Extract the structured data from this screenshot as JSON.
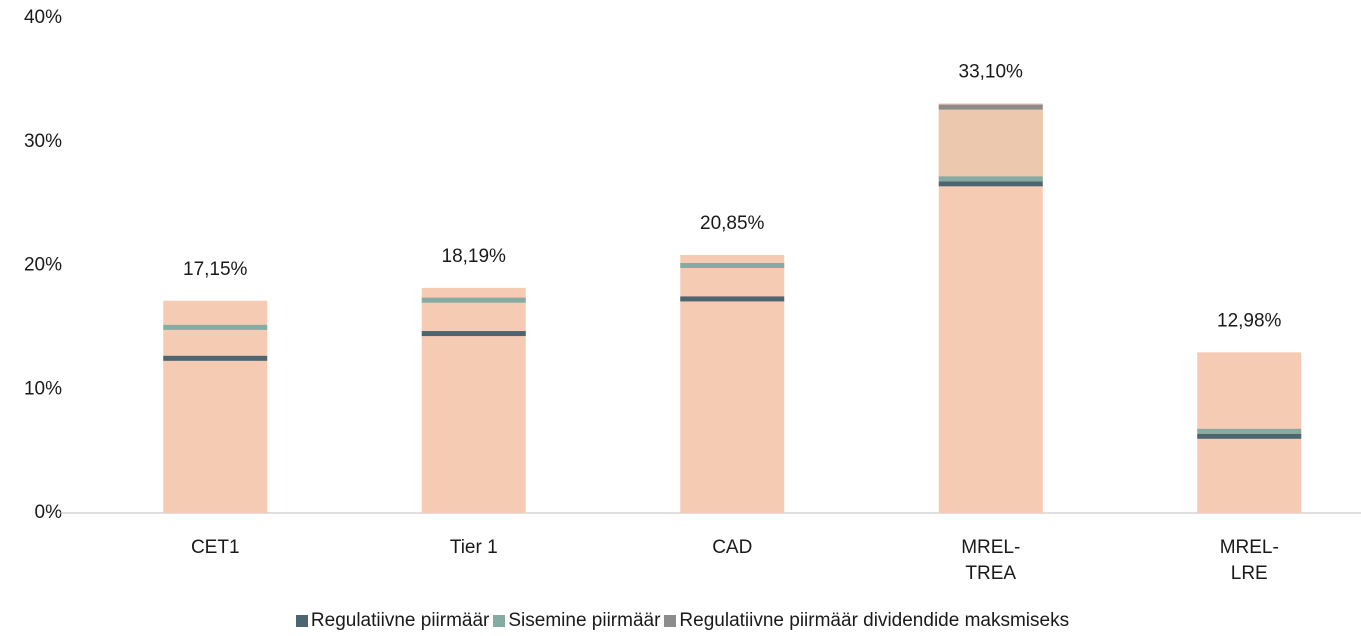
{
  "chart_data": {
    "type": "bar",
    "categories": [
      [
        "CET1"
      ],
      [
        "Tier 1"
      ],
      [
        "CAD"
      ],
      [
        "MREL-",
        "TREA"
      ],
      [
        "MREL-",
        "LRE"
      ]
    ],
    "values": [
      17.15,
      18.19,
      20.85,
      33.1,
      12.98
    ],
    "value_labels": [
      "17,15%",
      "18,19%",
      "20,85%",
      "33,10%",
      "12,98%"
    ],
    "color": "#f5cbb4",
    "series": [
      {
        "name": "Regulatiivne piirmäär",
        "color": "#4d6570",
        "values": [
          12.5,
          14.5,
          17.3,
          26.6,
          6.2
        ]
      },
      {
        "name": "Sisemine piirmäär",
        "color": "#86aba3",
        "values": [
          15.0,
          17.2,
          20.0,
          27.0,
          6.6
        ]
      },
      {
        "name": "Regulatiivne piirmäär dividendide maksmiseks",
        "color": "#8c8c8c",
        "values": [
          null,
          null,
          null,
          32.8,
          null
        ]
      }
    ],
    "ylim": [
      0,
      40
    ],
    "yticks": [
      {
        "value": 0,
        "label": "0%"
      },
      {
        "value": 10,
        "label": "10%"
      },
      {
        "value": 20,
        "label": "20%"
      },
      {
        "value": 30,
        "label": "30%"
      },
      {
        "value": 40,
        "label": "40%"
      }
    ],
    "legend": "bottom"
  }
}
